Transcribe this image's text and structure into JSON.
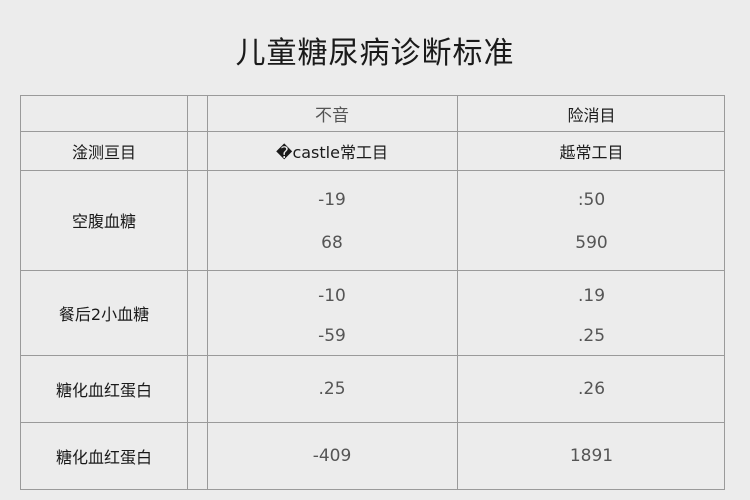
{
  "title": "儿童糖尿病诊断标准",
  "header": {
    "group_left": "不音",
    "group_right": "险消目",
    "col0": "淦测亘目",
    "col1": "�castle常工目",
    "col2": "趆常工目"
  },
  "rows": [
    {
      "label": "空腹血糖",
      "normal": [
        "-19",
        "68"
      ],
      "abnormal": [
        ":50",
        "590"
      ]
    },
    {
      "label": "餐后2小血糖",
      "normal": [
        "-10",
        "-59"
      ],
      "abnormal": [
        ".19",
        ".25"
      ]
    },
    {
      "label": "糖化血红蛋白",
      "normal": [
        ".25"
      ],
      "abnormal": [
        ".26"
      ]
    },
    {
      "label": "糖化血红蛋白",
      "normal": [
        "-409"
      ],
      "abnormal": [
        "1891"
      ]
    }
  ]
}
